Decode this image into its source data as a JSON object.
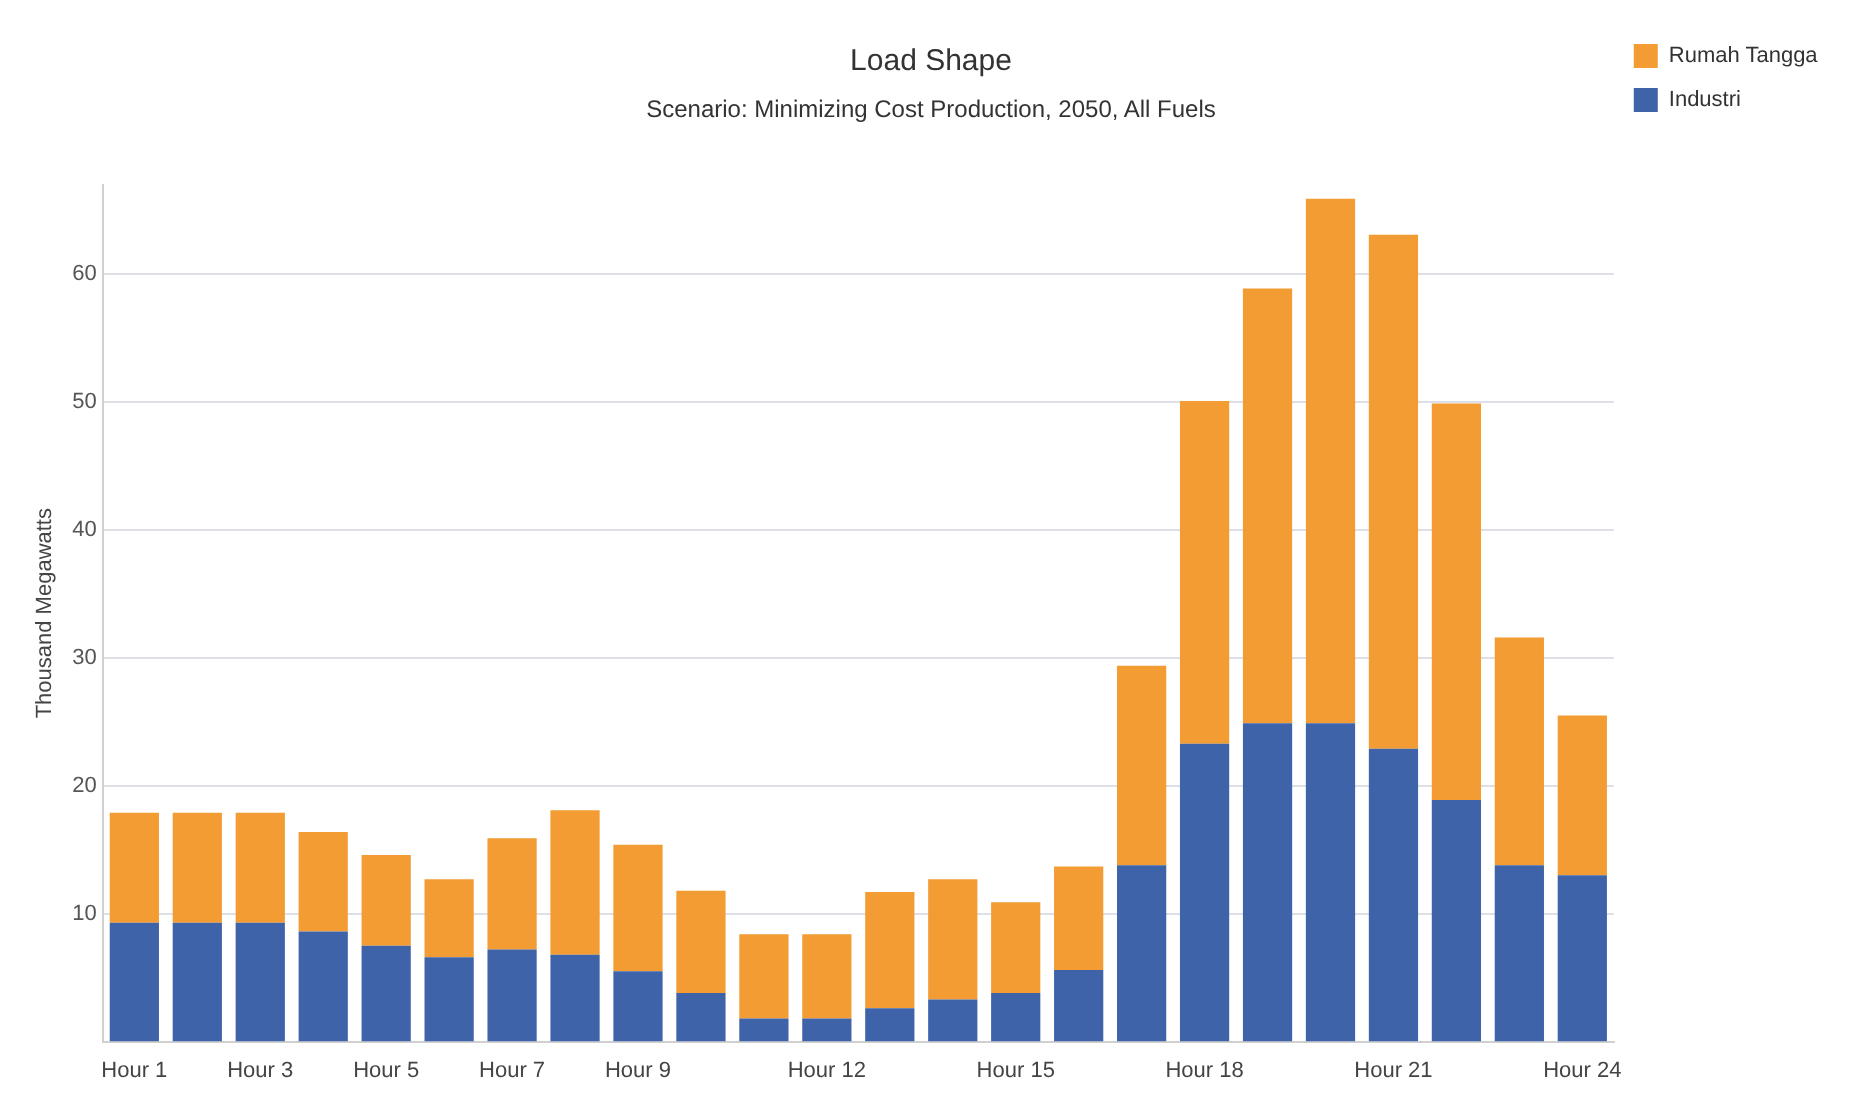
{
  "chart_data": {
    "type": "bar",
    "title": "Load Shape",
    "subtitle": "Scenario: Minimizing Cost Production, 2050, All Fuels",
    "ylabel": "Thousand Megawatts",
    "categories": [
      "Hour 1",
      null,
      "Hour 3",
      null,
      "Hour 5",
      null,
      "Hour 7",
      null,
      "Hour 9",
      null,
      null,
      "Hour 12",
      null,
      null,
      "Hour 15",
      null,
      null,
      "Hour 18",
      null,
      null,
      "Hour 21",
      null,
      null,
      "Hour 24"
    ],
    "stacked": true,
    "series": [
      {
        "name": "Industri",
        "color": "#3e63a8",
        "values": [
          9.3,
          9.3,
          9.3,
          8.6,
          7.5,
          6.6,
          7.2,
          6.8,
          5.5,
          3.8,
          1.8,
          1.8,
          2.6,
          3.3,
          3.8,
          5.6,
          13.8,
          23.3,
          24.9,
          24.9,
          22.9,
          18.9,
          13.8,
          13.0
        ]
      },
      {
        "name": "Rumah Tangga",
        "color": "#f39c33",
        "values": [
          8.6,
          8.6,
          8.6,
          7.8,
          7.1,
          6.1,
          8.7,
          11.3,
          9.9,
          8.0,
          6.6,
          6.6,
          9.1,
          9.4,
          7.1,
          8.1,
          15.6,
          26.8,
          34.0,
          41.0,
          40.2,
          31.0,
          17.8,
          12.5
        ]
      }
    ],
    "ylim": [
      0,
      67
    ],
    "yticks": [
      10,
      20,
      30,
      40,
      50,
      60
    ],
    "grid": "y",
    "legend": "top right"
  }
}
